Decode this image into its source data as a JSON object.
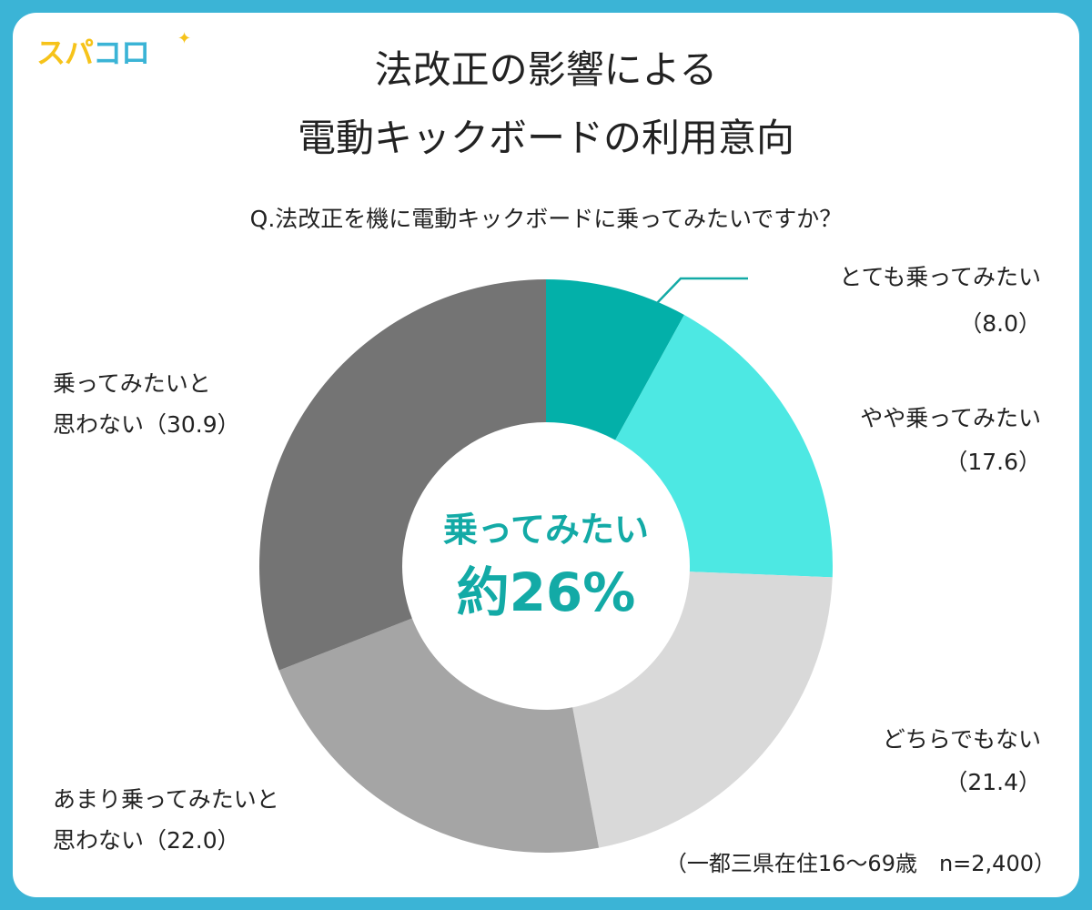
{
  "logo": {
    "part1": "スパ",
    "part2": "コロ",
    "star": "✦"
  },
  "title_line1": "法改正の影響による",
  "title_line2": "電動キックボードの利用意向",
  "question": "Q.法改正を機に電動キックボードに乗ってみたいですか？",
  "center_label": "乗ってみたい",
  "center_value": "約26%",
  "footnote": "（一都三県在住16〜69歳　n=2,400）",
  "labels": {
    "s0_l1": "とても乗ってみたい",
    "s0_l2": "（8.0）",
    "s1_l1": "やや乗ってみたい",
    "s1_l2": "（17.6）",
    "s2_l1": "どちらでもない",
    "s2_l2": "（21.4）",
    "s3_l1": "あまり乗ってみたいと",
    "s3_l2": "思わない（22.0）",
    "s4_l1": "乗ってみたいと",
    "s4_l2": "思わない（30.9）"
  },
  "chart_data": {
    "type": "pie",
    "title": "法改正の影響による電動キックボードの利用意向",
    "subtitle": "Q.法改正を機に電動キックボードに乗ってみたいですか？",
    "categories": [
      "とても乗ってみたい",
      "やや乗ってみたい",
      "どちらでもない",
      "あまり乗ってみたいと思わない",
      "乗ってみたいと思わない"
    ],
    "values": [
      8.0,
      17.6,
      21.4,
      22.0,
      30.9
    ],
    "colors": [
      "#03b0a9",
      "#4de8e3",
      "#d9d9d9",
      "#a5a5a5",
      "#747474"
    ],
    "donut": true,
    "center_text": "乗ってみたい 約26%"
  }
}
